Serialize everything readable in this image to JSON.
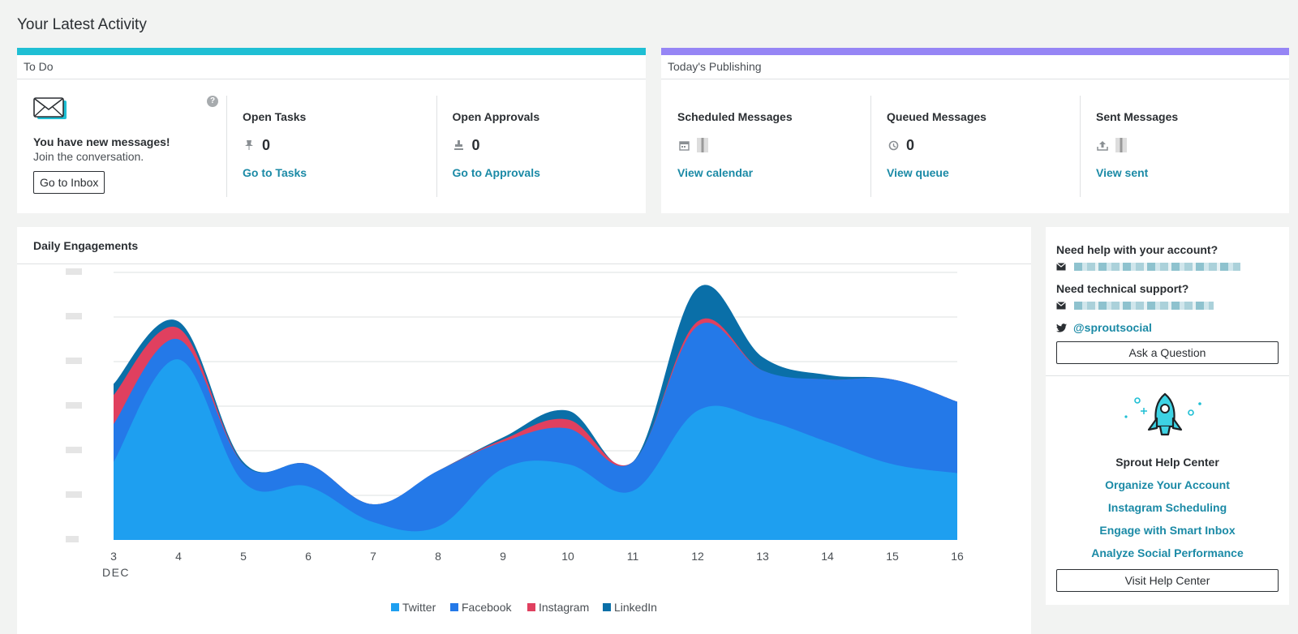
{
  "page": {
    "title": "Your Latest Activity"
  },
  "colors": {
    "todo_accent": "#1fbfd4",
    "publishing_accent": "#9685f5",
    "link": "#1b8aa6",
    "twitter": "#1e9ff0",
    "facebook": "#2479e8",
    "instagram": "#e0405f",
    "linkedin": "#0a6fa8"
  },
  "todo": {
    "header": "To Do",
    "inbox": {
      "icon": "envelope-icon",
      "headline": "You have new messages!",
      "subline": "Join the conversation.",
      "button": "Go to Inbox"
    },
    "tasks": {
      "title": "Open Tasks",
      "icon": "pin-icon",
      "count": "0",
      "link": "Go to Tasks"
    },
    "approvals": {
      "title": "Open Approvals",
      "icon": "stamp-icon",
      "count": "0",
      "link": "Go to Approvals"
    }
  },
  "publishing": {
    "header": "Today's Publishing",
    "scheduled": {
      "title": "Scheduled Messages",
      "icon": "calendar-icon",
      "link": "View calendar"
    },
    "queued": {
      "title": "Queued Messages",
      "icon": "queue-icon",
      "count": "0",
      "link": "View queue"
    },
    "sent": {
      "title": "Sent Messages",
      "icon": "upload-icon",
      "link": "View sent"
    }
  },
  "engagements": {
    "title": "Daily Engagements"
  },
  "chart_data": {
    "type": "area",
    "stacked": true,
    "title": "Daily Engagements",
    "x": [
      3,
      4,
      5,
      6,
      7,
      8,
      9,
      10,
      11,
      12,
      13,
      14,
      15,
      16
    ],
    "tick_labels": [
      "3",
      "4",
      "5",
      "6",
      "7",
      "8",
      "9",
      "10",
      "11",
      "12",
      "13",
      "14",
      "15",
      "16"
    ],
    "xlabel": "DEC",
    "ylabel": "",
    "ylim": [
      0,
      6
    ],
    "series": [
      {
        "name": "Twitter",
        "values": [
          1.75,
          4.05,
          1.3,
          1.2,
          0.4,
          0.3,
          1.6,
          1.7,
          1.1,
          2.9,
          2.7,
          2.2,
          1.7,
          1.5
        ]
      },
      {
        "name": "Facebook",
        "values": [
          0.85,
          0.45,
          0.4,
          0.5,
          0.4,
          1.25,
          0.6,
          0.8,
          0.65,
          1.9,
          1.1,
          1.4,
          1.9,
          1.6
        ]
      },
      {
        "name": "Instagram",
        "values": [
          0.65,
          0.25,
          0.0,
          0.0,
          0.0,
          0.0,
          0.05,
          0.2,
          0.0,
          0.1,
          0.0,
          0.0,
          0.0,
          0.0
        ]
      },
      {
        "name": "LinkedIn",
        "values": [
          0.25,
          0.15,
          0.05,
          0.0,
          0.0,
          0.0,
          0.05,
          0.2,
          0.0,
          0.75,
          0.3,
          0.1,
          0.0,
          0.0
        ]
      }
    ],
    "legend": [
      "Twitter",
      "Facebook",
      "Instagram",
      "LinkedIn"
    ],
    "legend_position": "bottom-center",
    "grid": true
  },
  "support": {
    "account_q": "Need help with your account?",
    "tech_q": "Need technical support?",
    "twitter_handle": "@sproutsocial",
    "ask_button": "Ask a Question",
    "help_center_title": "Sprout Help Center",
    "links": [
      "Organize Your Account",
      "Instagram Scheduling",
      "Engage with Smart Inbox",
      "Analyze Social Performance"
    ],
    "visit_button": "Visit Help Center"
  }
}
